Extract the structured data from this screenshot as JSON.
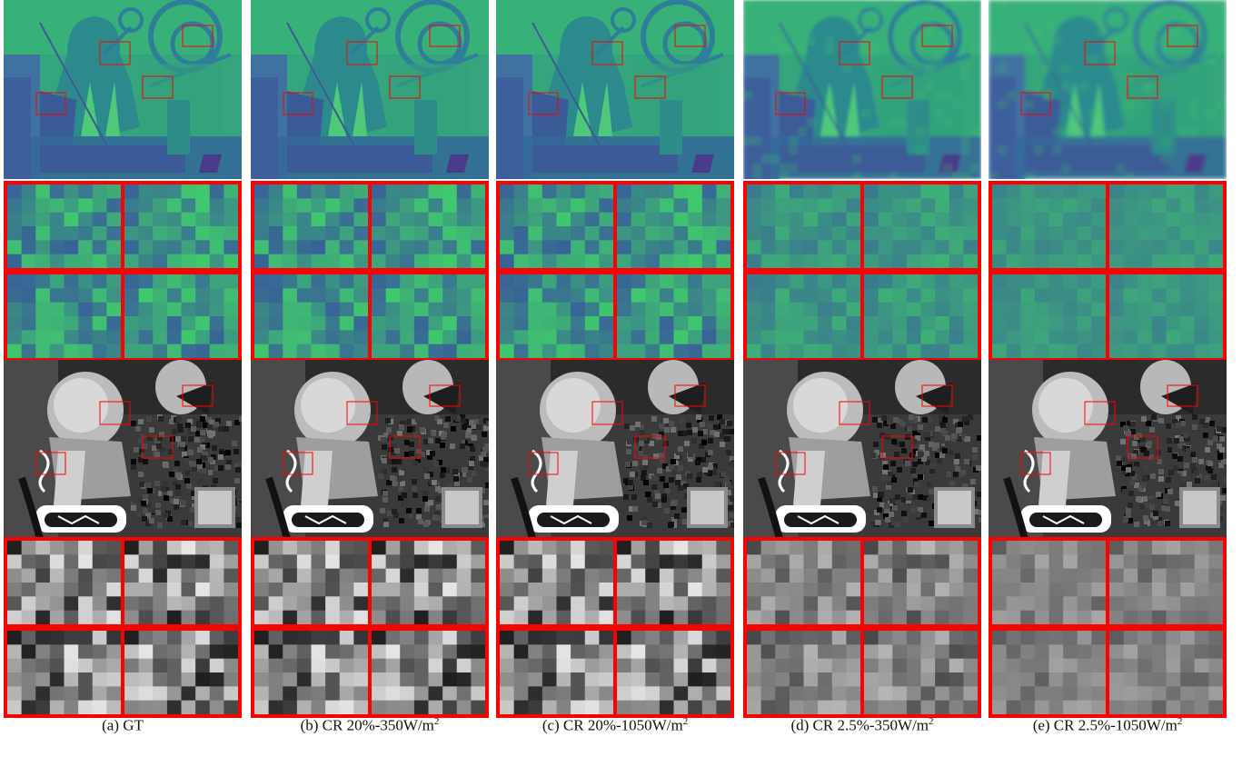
{
  "figure": {
    "colors": {
      "frame": "#ff0000",
      "depth_bg": "#34a57c",
      "depth_dark": "#3a5b96",
      "depth_mid": "#2c8a8d",
      "depth_light": "#3fbf6f",
      "gray_bg": "#3a3a3a"
    },
    "columns": [
      {
        "id": "a",
        "caption": "(a) GT",
        "caption_main": "(a) GT",
        "caption_unit": "",
        "caption_sup": ""
      },
      {
        "id": "b",
        "caption": "(b) CR 20%-350W/m2",
        "caption_main": "(b) CR 20%-350",
        "caption_unit": "W/m",
        "caption_sup": "2"
      },
      {
        "id": "c",
        "caption": "(c) CR 20%-1050W/m2",
        "caption_main": "(c) CR 20%-1050",
        "caption_unit": "W/m",
        "caption_sup": "2"
      },
      {
        "id": "d",
        "caption": "(d) CR 2.5%-350W/m2",
        "caption_main": "(d) CR 2.5%-350",
        "caption_unit": "W/m",
        "caption_sup": "2"
      },
      {
        "id": "e",
        "caption": "(e) CR 2.5%-1050W/m2",
        "caption_main": "(e) CR 2.5%-1050",
        "caption_unit": "W/m",
        "caption_sup": "2"
      }
    ],
    "rows": [
      {
        "id": "depth-image",
        "kind": "depth"
      },
      {
        "id": "depth-zoom-1",
        "kind": "depth-zoom"
      },
      {
        "id": "depth-zoom-2",
        "kind": "depth-zoom"
      },
      {
        "id": "intensity-image",
        "kind": "intensity"
      },
      {
        "id": "intensity-zoom-1",
        "kind": "intensity-zoom"
      },
      {
        "id": "intensity-zoom-2",
        "kind": "intensity-zoom"
      }
    ]
  }
}
